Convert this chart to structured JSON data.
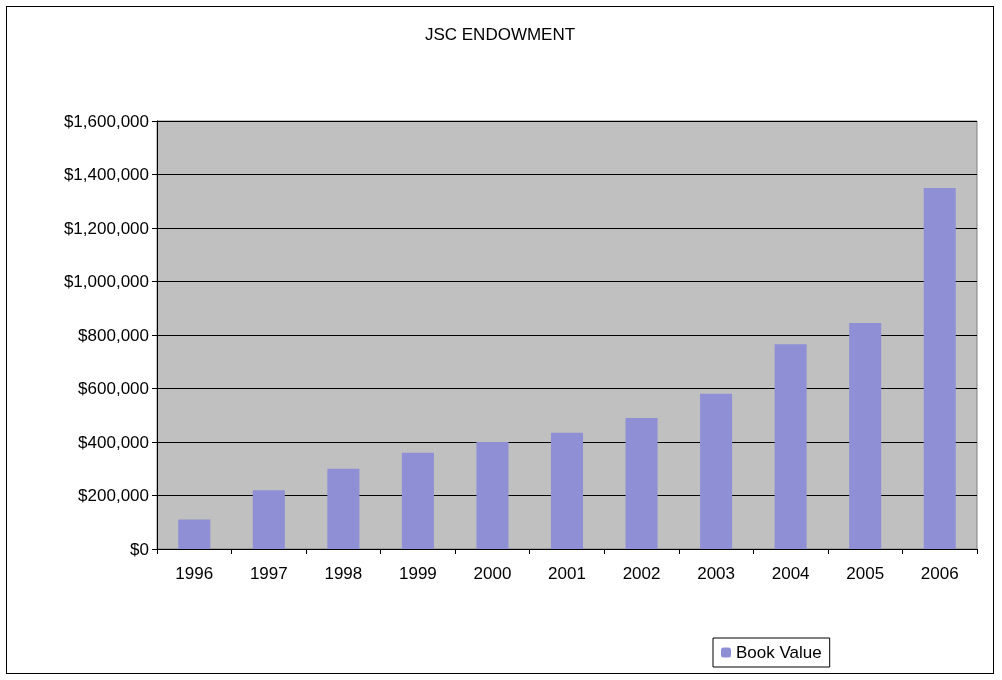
{
  "chart_data": {
    "type": "bar",
    "title": "JSC ENDOWMENT",
    "categories": [
      "1996",
      "1997",
      "1998",
      "1999",
      "2000",
      "2001",
      "2002",
      "2003",
      "2004",
      "2005",
      "2006"
    ],
    "series": [
      {
        "name": "Book Value",
        "color": "#8f8fd6",
        "values": [
          110000,
          220000,
          300000,
          360000,
          400000,
          435000,
          490000,
          580000,
          765000,
          845000,
          1350000
        ]
      }
    ],
    "ylim": [
      0,
      1600000
    ],
    "yticks": [
      {
        "value": 0,
        "label": "$0"
      },
      {
        "value": 200000,
        "label": "$200,000"
      },
      {
        "value": 400000,
        "label": "$400,000"
      },
      {
        "value": 600000,
        "label": "$600,000"
      },
      {
        "value": 800000,
        "label": "$800,000"
      },
      {
        "value": 1000000,
        "label": "$1,000,000"
      },
      {
        "value": 1200000,
        "label": "$1,200,000"
      },
      {
        "value": 1400000,
        "label": "$1,400,000"
      },
      {
        "value": 1600000,
        "label": "$1,600,000"
      }
    ],
    "grid": "y",
    "legend": "bottom"
  }
}
